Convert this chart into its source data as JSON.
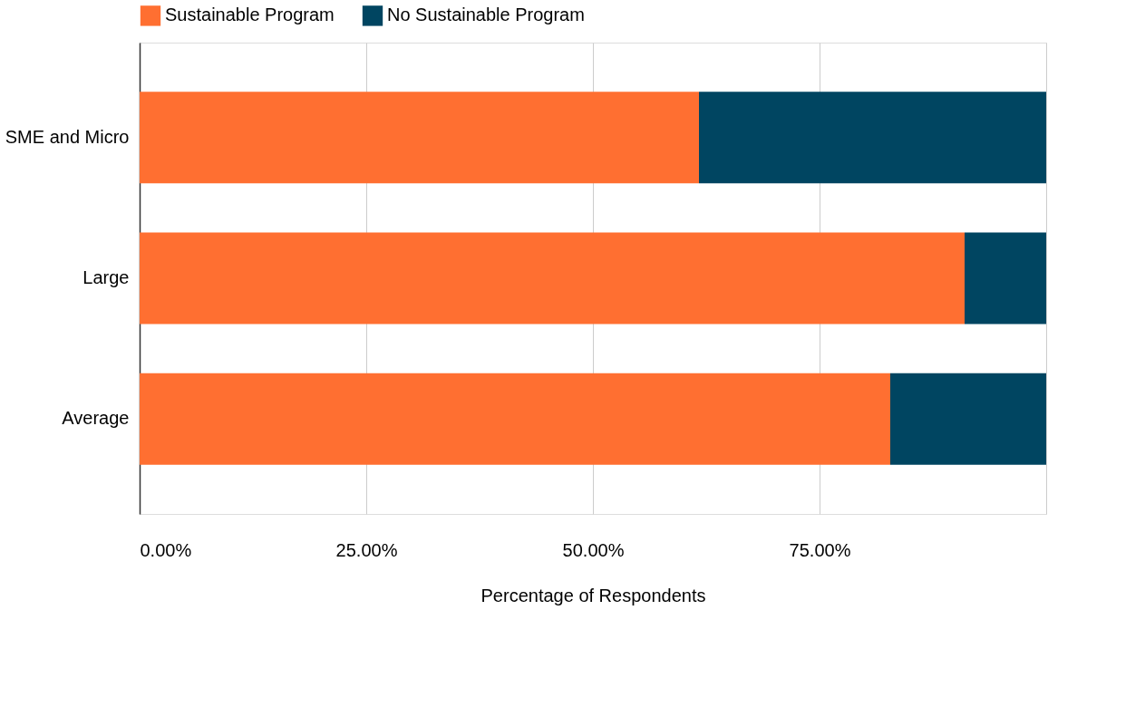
{
  "chart_data": {
    "type": "bar",
    "orientation": "horizontal",
    "stacked": true,
    "xlabel": "Percentage of Respondents",
    "categories": [
      "SME and Micro",
      "Large",
      "Average"
    ],
    "series": [
      {
        "name": "Sustainable Program",
        "color": "#ff6f31",
        "values": [
          61.7,
          91.0,
          82.8
        ]
      },
      {
        "name": "No Sustainable Program",
        "color": "#004561",
        "values": [
          38.3,
          9.0,
          17.2
        ]
      }
    ],
    "xlim": [
      0,
      100
    ],
    "xticks": [
      {
        "value": 0,
        "label": "0.00%"
      },
      {
        "value": 25,
        "label": "25.00%"
      },
      {
        "value": 50,
        "label": "50.00%"
      },
      {
        "value": 75,
        "label": "75.00%"
      },
      {
        "value": 100,
        "label": null
      }
    ],
    "grid": "x",
    "legend": "top"
  }
}
